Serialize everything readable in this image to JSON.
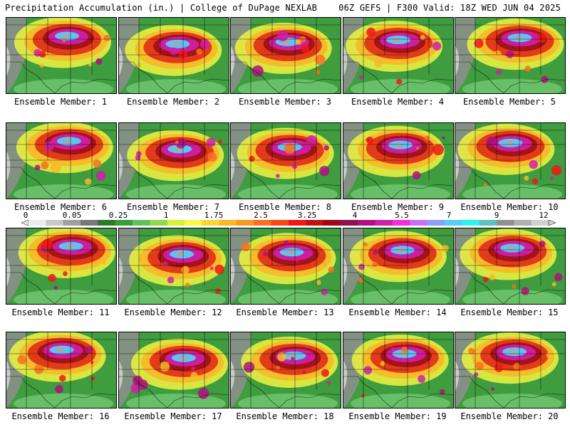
{
  "header": {
    "left": "Precipitation Accumulation (in.) | College of DuPage NEXLAB",
    "right": "06Z GEFS | F300 Valid: 18Z WED JUN 04 2025"
  },
  "legend": {
    "ticks": [
      "0",
      "0.05",
      "0.25",
      "1",
      "1.75",
      "2.5",
      "3.25",
      "4",
      "5.5",
      "7",
      "9",
      "12"
    ],
    "colors": [
      "#ececec",
      "#c8c8c8",
      "#a0a0a0",
      "#787878",
      "#2a7a2a",
      "#38a038",
      "#60c060",
      "#90d850",
      "#d8f038",
      "#f8f848",
      "#f8d838",
      "#f8b828",
      "#f89820",
      "#f87020",
      "#f84818",
      "#f01818",
      "#c81010",
      "#a00818",
      "#901050",
      "#b01080",
      "#d020a8",
      "#f030d8",
      "#c870f0",
      "#8aa0f8",
      "#50d0f8",
      "#30f0f0",
      "#60c0c0",
      "#909090",
      "#b0b0b0",
      "#d0d0d0"
    ]
  },
  "members": [
    {
      "label": "Ensemble Member: 1"
    },
    {
      "label": "Ensemble Member: 2"
    },
    {
      "label": "Ensemble Member: 3"
    },
    {
      "label": "Ensemble Member: 4"
    },
    {
      "label": "Ensemble Member: 5"
    },
    {
      "label": "Ensemble Member: 6"
    },
    {
      "label": "Ensemble Member: 7"
    },
    {
      "label": "Ensemble Member: 8"
    },
    {
      "label": "Ensemble Member: 9"
    },
    {
      "label": "Ensemble Member: 10"
    },
    {
      "label": "Ensemble Member: 11"
    },
    {
      "label": "Ensemble Member: 12"
    },
    {
      "label": "Ensemble Member: 13"
    },
    {
      "label": "Ensemble Member: 14"
    },
    {
      "label": "Ensemble Member: 15"
    },
    {
      "label": "Ensemble Member: 16"
    },
    {
      "label": "Ensemble Member: 17"
    },
    {
      "label": "Ensemble Member: 18"
    },
    {
      "label": "Ensemble Member: 19"
    },
    {
      "label": "Ensemble Member: 20"
    }
  ]
}
